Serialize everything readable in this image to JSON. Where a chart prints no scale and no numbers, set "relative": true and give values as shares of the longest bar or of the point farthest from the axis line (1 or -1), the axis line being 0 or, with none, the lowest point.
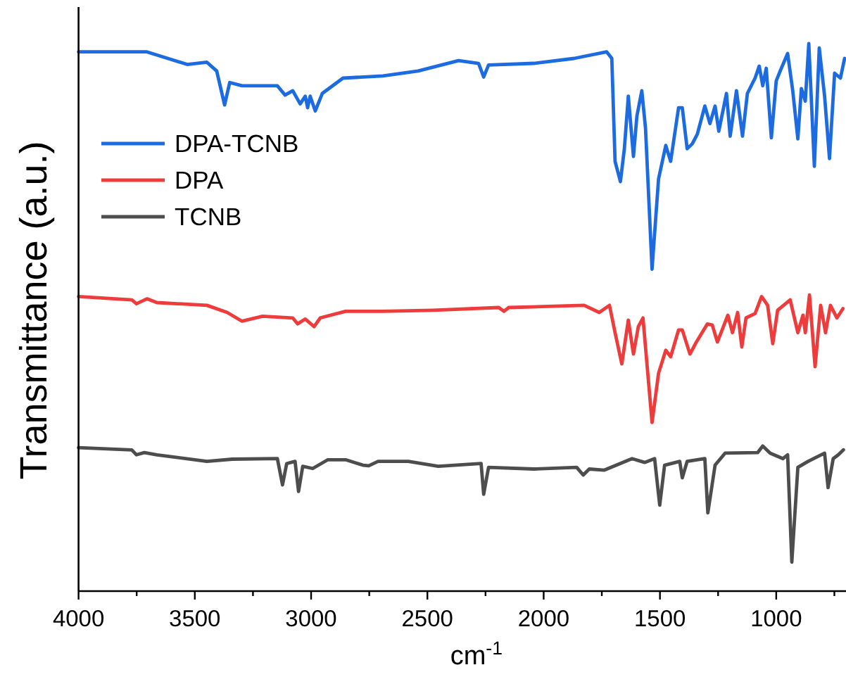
{
  "chart_data": {
    "type": "line",
    "xlabel": "cm$^{-1}$",
    "ylabel": "Transmittance (a.u.)",
    "relative": true,
    "legend": "top left",
    "xlim": [
      4000,
      700
    ],
    "xticks": [
      4000,
      {
        "value": 3750,
        "label": null
      },
      3500,
      {
        "value": 3250,
        "label": null
      },
      3000,
      {
        "value": 2750,
        "label": null
      },
      2500,
      {
        "value": 2250,
        "label": null
      },
      2000,
      {
        "value": 1750,
        "label": null
      },
      1500,
      {
        "value": 1250,
        "label": null
      },
      1000,
      {
        "value": 750,
        "label": null
      }
    ],
    "series": [
      {
        "name": "DPA-TCNB",
        "color": "#1c6be0",
        "x": [
          4000,
          3706,
          3533,
          3448,
          3406,
          3372,
          3350,
          3297,
          3145,
          3112,
          3079,
          3047,
          3025,
          3015,
          3004,
          2982,
          2952,
          2863,
          2691,
          2540,
          2366,
          2280,
          2258,
          2237,
          2042,
          1869,
          1729,
          1707,
          1693,
          1670,
          1653,
          1636,
          1614,
          1599,
          1578,
          1562,
          1534,
          1506,
          1475,
          1454,
          1420,
          1404,
          1383,
          1361,
          1339,
          1307,
          1285,
          1263,
          1247,
          1214,
          1198,
          1171,
          1145,
          1124,
          1091,
          1073,
          1058,
          1043,
          1021,
          1000,
          983,
          951,
          929,
          907,
          892,
          875,
          860,
          836,
          815,
          792,
          771,
          749,
          724,
          706
        ],
        "values": [
          0.985,
          0.985,
          0.962,
          0.966,
          0.95,
          0.888,
          0.929,
          0.923,
          0.923,
          0.906,
          0.914,
          0.89,
          0.904,
          0.883,
          0.904,
          0.877,
          0.909,
          0.937,
          0.941,
          0.95,
          0.969,
          0.964,
          0.939,
          0.961,
          0.964,
          0.973,
          0.985,
          0.973,
          0.785,
          0.748,
          0.808,
          0.904,
          0.794,
          0.868,
          0.914,
          0.845,
          0.588,
          0.753,
          0.814,
          0.785,
          0.883,
          0.883,
          0.808,
          0.817,
          0.835,
          0.886,
          0.854,
          0.886,
          0.84,
          0.909,
          0.831,
          0.914,
          0.831,
          0.909,
          0.937,
          0.959,
          0.923,
          0.955,
          0.828,
          0.932,
          0.95,
          0.982,
          0.914,
          0.826,
          0.918,
          0.895,
          1,
          0.776,
          0.992,
          0.904,
          0.79,
          0.946,
          0.937,
          0.973
        ]
      },
      {
        "name": "DPA",
        "color": "#ee3b3b",
        "x": [
          4000,
          3771,
          3751,
          3706,
          3663,
          3448,
          3361,
          3297,
          3209,
          3079,
          3058,
          3025,
          2987,
          2961,
          2852,
          2691,
          2474,
          2193,
          2171,
          2150,
          1826,
          1761,
          1717,
          1693,
          1664,
          1636,
          1614,
          1593,
          1573,
          1534,
          1506,
          1475,
          1454,
          1420,
          1404,
          1371,
          1346,
          1296,
          1275,
          1253,
          1208,
          1188,
          1166,
          1148,
          1130,
          1091,
          1063,
          1037,
          1015,
          994,
          940,
          907,
          885,
          875,
          857,
          833,
          809,
          788,
          767,
          739,
          713
        ],
        "values": [
          0.538,
          0.532,
          0.525,
          0.534,
          0.527,
          0.522,
          0.509,
          0.493,
          0.502,
          0.499,
          0.488,
          0.497,
          0.483,
          0.499,
          0.511,
          0.511,
          0.513,
          0.518,
          0.511,
          0.518,
          0.522,
          0.509,
          0.522,
          0.472,
          0.415,
          0.495,
          0.433,
          0.483,
          0.499,
          0.308,
          0.398,
          0.44,
          0.428,
          0.477,
          0.477,
          0.433,
          0.453,
          0.488,
          0.486,
          0.455,
          0.504,
          0.472,
          0.509,
          0.446,
          0.499,
          0.507,
          0.538,
          0.522,
          0.452,
          0.513,
          0.532,
          0.472,
          0.504,
          0.472,
          0.541,
          0.41,
          0.522,
          0.472,
          0.522,
          0.499,
          0.516
        ]
      },
      {
        "name": "TCNB",
        "color": "#4d4d4d",
        "x": [
          4000,
          3771,
          3751,
          3717,
          3663,
          3448,
          3339,
          3145,
          3123,
          3105,
          3069,
          3054,
          3036,
          2993,
          2928,
          2852,
          2777,
          2752,
          2712,
          2582,
          2453,
          2269,
          2258,
          2237,
          2042,
          1858,
          1830,
          1804,
          1739,
          1620,
          1566,
          1523,
          1501,
          1480,
          1415,
          1404,
          1383,
          1307,
          1294,
          1263,
          1220,
          1080,
          1058,
          1026,
          971,
          951,
          933,
          907,
          863,
          792,
          777,
          755,
          733,
          711
        ],
        "values": [
          0.262,
          0.258,
          0.249,
          0.253,
          0.249,
          0.237,
          0.241,
          0.242,
          0.194,
          0.233,
          0.237,
          0.182,
          0.228,
          0.224,
          0.24,
          0.24,
          0.23,
          0.229,
          0.237,
          0.237,
          0.228,
          0.233,
          0.177,
          0.226,
          0.223,
          0.226,
          0.212,
          0.223,
          0.221,
          0.242,
          0.235,
          0.242,
          0.157,
          0.23,
          0.237,
          0.207,
          0.237,
          0.242,
          0.143,
          0.23,
          0.252,
          0.253,
          0.265,
          0.252,
          0.242,
          0.249,
          0.053,
          0.226,
          0.237,
          0.252,
          0.189,
          0.242,
          0.249,
          0.258
        ]
      }
    ]
  }
}
